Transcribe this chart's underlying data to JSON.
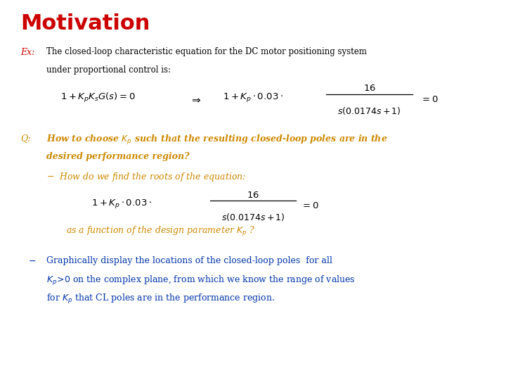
{
  "title": "Motivation",
  "title_color": "#CC0000",
  "title_fontsize": 22,
  "bg_color": "#FFFFFF",
  "ex_label_color": "#CC0000",
  "ex_text_color": "#000000",
  "gold_color": "#CC8800",
  "blue_color": "#0033AA",
  "black_color": "#000000"
}
